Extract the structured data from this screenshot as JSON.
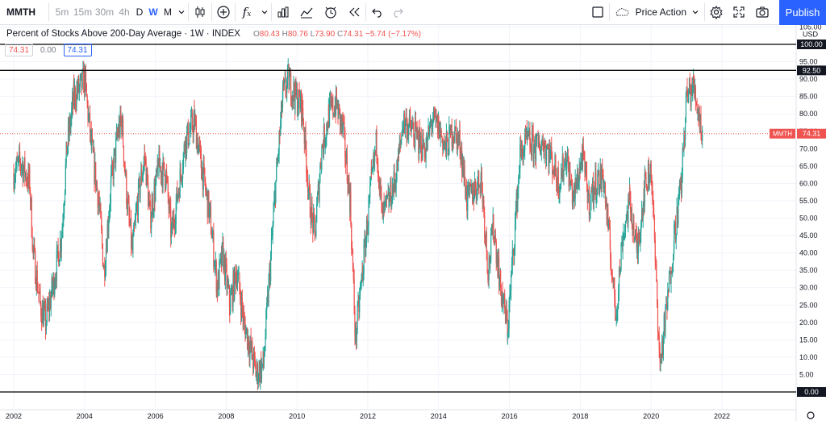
{
  "toolbar": {
    "symbol": "MMTH",
    "intervals": [
      "5m",
      "15m",
      "30m",
      "4h",
      "D",
      "W",
      "M"
    ],
    "active_interval": "W",
    "fx_label": "f",
    "fx_sub": "x",
    "layout_name": "Price Action",
    "publish_label": "Publish",
    "icons": [
      "chevron-down-icon",
      "candles-icon",
      "add-icon",
      "indicators-icon",
      "chevron-down-icon",
      "bar-chart-icon",
      "compare-icon",
      "alert-icon",
      "replay-icon",
      "undo-icon",
      "redo-icon",
      "fullscreen-toggle-icon",
      "layout-icon",
      "settings-icon",
      "fullscreen-icon",
      "camera-icon"
    ]
  },
  "legend": {
    "title": "Percent of Stocks Above 200-Day Average · 1W · INDEX",
    "o_label": "O",
    "o_value": "80.43",
    "h_label": "H",
    "h_value": "80.76",
    "l_label": "L",
    "l_value": "73.90",
    "c_label": "C",
    "c_value": "74.31",
    "change": "−5.74 (−7.17%)",
    "value_1": "74.31",
    "value_2": "0.00",
    "value_3": "74.31"
  },
  "chart_data": {
    "type": "candlestick",
    "x_ticks": [
      "2002",
      "2004",
      "2006",
      "2008",
      "2010",
      "2012",
      "2014",
      "2016",
      "2018",
      "2020",
      "2022"
    ],
    "y_ticks": [
      "105.00",
      "95.00",
      "90.00",
      "85.00",
      "80.00",
      "75.00",
      "70.00",
      "65.00",
      "60.00",
      "55.00",
      "50.00",
      "45.00",
      "40.00",
      "35.00",
      "30.00",
      "25.00",
      "20.00",
      "15.00",
      "10.00",
      "5.00"
    ],
    "currency": "USD",
    "ylim": [
      0,
      107
    ],
    "xlim": [
      2001.7,
      2022.5
    ],
    "horizontal_lines": [
      {
        "value": 100,
        "label": "100.00"
      },
      {
        "value": 92.5,
        "label": "92.50"
      },
      {
        "value": 0,
        "label": "0.00"
      }
    ],
    "last_price": {
      "value": 74.31,
      "symbol": "MMTH",
      "label": "74.31"
    },
    "colors": {
      "up": "#26a69a",
      "down": "#ef5350",
      "grid": "#f0f3fa",
      "line": "#000000",
      "price_line": "#ef5350",
      "accent": "#2962ff"
    },
    "closes": [
      {
        "x": 2002.0,
        "y": 63
      },
      {
        "x": 2002.2,
        "y": 66
      },
      {
        "x": 2002.45,
        "y": 60
      },
      {
        "x": 2002.55,
        "y": 40
      },
      {
        "x": 2002.75,
        "y": 25
      },
      {
        "x": 2002.9,
        "y": 20
      },
      {
        "x": 2003.1,
        "y": 30
      },
      {
        "x": 2003.35,
        "y": 45
      },
      {
        "x": 2003.5,
        "y": 70
      },
      {
        "x": 2003.7,
        "y": 85
      },
      {
        "x": 2003.9,
        "y": 88
      },
      {
        "x": 2004.0,
        "y": 90
      },
      {
        "x": 2004.2,
        "y": 70
      },
      {
        "x": 2004.4,
        "y": 55
      },
      {
        "x": 2004.55,
        "y": 35
      },
      {
        "x": 2004.75,
        "y": 60
      },
      {
        "x": 2004.95,
        "y": 75
      },
      {
        "x": 2005.05,
        "y": 78
      },
      {
        "x": 2005.2,
        "y": 55
      },
      {
        "x": 2005.35,
        "y": 40
      },
      {
        "x": 2005.5,
        "y": 55
      },
      {
        "x": 2005.7,
        "y": 68
      },
      {
        "x": 2005.85,
        "y": 50
      },
      {
        "x": 2006.1,
        "y": 65
      },
      {
        "x": 2006.3,
        "y": 62
      },
      {
        "x": 2006.45,
        "y": 45
      },
      {
        "x": 2006.6,
        "y": 55
      },
      {
        "x": 2006.85,
        "y": 72
      },
      {
        "x": 2007.1,
        "y": 78
      },
      {
        "x": 2007.3,
        "y": 65
      },
      {
        "x": 2007.55,
        "y": 50
      },
      {
        "x": 2007.75,
        "y": 30
      },
      {
        "x": 2007.9,
        "y": 40
      },
      {
        "x": 2008.1,
        "y": 25
      },
      {
        "x": 2008.3,
        "y": 35
      },
      {
        "x": 2008.5,
        "y": 20
      },
      {
        "x": 2008.7,
        "y": 12
      },
      {
        "x": 2008.85,
        "y": 5
      },
      {
        "x": 2009.05,
        "y": 8
      },
      {
        "x": 2009.2,
        "y": 30
      },
      {
        "x": 2009.4,
        "y": 60
      },
      {
        "x": 2009.6,
        "y": 85
      },
      {
        "x": 2009.75,
        "y": 90
      },
      {
        "x": 2009.95,
        "y": 85
      },
      {
        "x": 2010.15,
        "y": 82
      },
      {
        "x": 2010.35,
        "y": 55
      },
      {
        "x": 2010.5,
        "y": 45
      },
      {
        "x": 2010.7,
        "y": 70
      },
      {
        "x": 2010.9,
        "y": 80
      },
      {
        "x": 2011.1,
        "y": 83
      },
      {
        "x": 2011.3,
        "y": 75
      },
      {
        "x": 2011.5,
        "y": 55
      },
      {
        "x": 2011.65,
        "y": 15
      },
      {
        "x": 2011.85,
        "y": 35
      },
      {
        "x": 2012.1,
        "y": 60
      },
      {
        "x": 2012.25,
        "y": 72
      },
      {
        "x": 2012.4,
        "y": 50
      },
      {
        "x": 2012.6,
        "y": 55
      },
      {
        "x": 2012.8,
        "y": 62
      },
      {
        "x": 2013.0,
        "y": 78
      },
      {
        "x": 2013.2,
        "y": 76
      },
      {
        "x": 2013.45,
        "y": 72
      },
      {
        "x": 2013.65,
        "y": 70
      },
      {
        "x": 2013.8,
        "y": 78
      },
      {
        "x": 2014.0,
        "y": 76
      },
      {
        "x": 2014.2,
        "y": 70
      },
      {
        "x": 2014.4,
        "y": 75
      },
      {
        "x": 2014.6,
        "y": 72
      },
      {
        "x": 2014.8,
        "y": 55
      },
      {
        "x": 2015.0,
        "y": 58
      },
      {
        "x": 2015.2,
        "y": 62
      },
      {
        "x": 2015.4,
        "y": 35
      },
      {
        "x": 2015.55,
        "y": 48
      },
      {
        "x": 2015.75,
        "y": 30
      },
      {
        "x": 2015.95,
        "y": 18
      },
      {
        "x": 2016.1,
        "y": 40
      },
      {
        "x": 2016.3,
        "y": 68
      },
      {
        "x": 2016.5,
        "y": 72
      },
      {
        "x": 2016.75,
        "y": 70
      },
      {
        "x": 2016.95,
        "y": 72
      },
      {
        "x": 2017.15,
        "y": 68
      },
      {
        "x": 2017.4,
        "y": 60
      },
      {
        "x": 2017.6,
        "y": 68
      },
      {
        "x": 2017.8,
        "y": 55
      },
      {
        "x": 2018.05,
        "y": 68
      },
      {
        "x": 2018.25,
        "y": 55
      },
      {
        "x": 2018.45,
        "y": 60
      },
      {
        "x": 2018.65,
        "y": 62
      },
      {
        "x": 2018.85,
        "y": 40
      },
      {
        "x": 2019.0,
        "y": 22
      },
      {
        "x": 2019.2,
        "y": 45
      },
      {
        "x": 2019.4,
        "y": 55
      },
      {
        "x": 2019.6,
        "y": 40
      },
      {
        "x": 2019.8,
        "y": 58
      },
      {
        "x": 2020.0,
        "y": 65
      },
      {
        "x": 2020.15,
        "y": 30
      },
      {
        "x": 2020.25,
        "y": 8
      },
      {
        "x": 2020.45,
        "y": 25
      },
      {
        "x": 2020.65,
        "y": 45
      },
      {
        "x": 2020.85,
        "y": 60
      },
      {
        "x": 2021.0,
        "y": 85
      },
      {
        "x": 2021.2,
        "y": 88
      },
      {
        "x": 2021.35,
        "y": 80
      },
      {
        "x": 2021.45,
        "y": 74.31
      }
    ]
  }
}
